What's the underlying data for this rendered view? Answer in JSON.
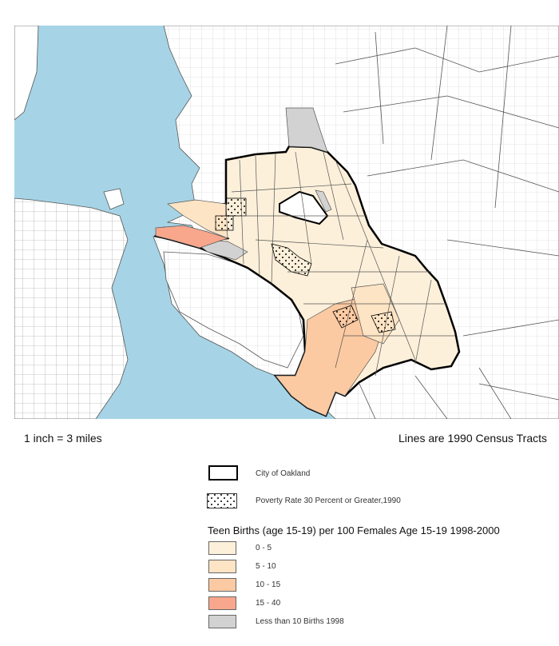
{
  "map": {
    "scale_text": "1 inch = 3 miles",
    "tracts_note": "Lines are 1990 Census Tracts",
    "colors": {
      "water": "#a6d4e6",
      "land": "#ffffff",
      "tract_line": "#555555",
      "city_border": "#000000"
    }
  },
  "legend": {
    "city_label": "City of Oakland",
    "poverty_label": "Poverty Rate 30 Percent or Greater,1990",
    "title": "Teen Births (age 15-19) per 100 Females Age 15-19 1998-2000",
    "classes": [
      {
        "label": "0 - 5",
        "color": "#fdf0da"
      },
      {
        "label": "5 - 10",
        "color": "#fde4c4"
      },
      {
        "label": "10 - 15",
        "color": "#fccaa2"
      },
      {
        "label": "15 - 40",
        "color": "#f8a78c"
      },
      {
        "label": "Less than 10 Births 1998",
        "color": "#d2d2d2"
      }
    ]
  }
}
